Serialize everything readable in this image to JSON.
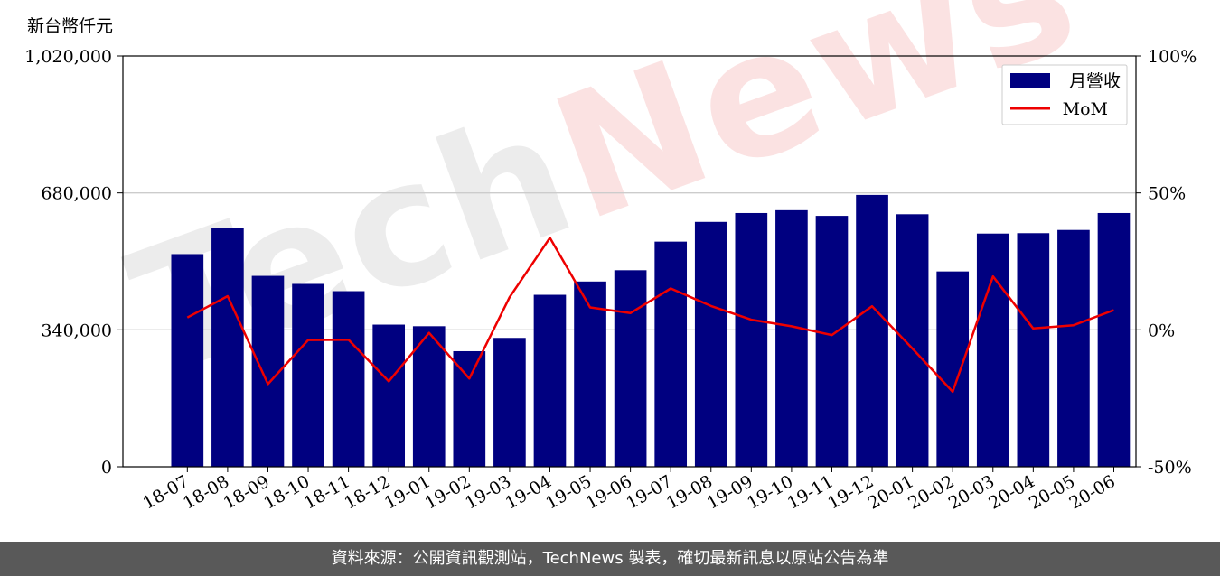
{
  "unit_label": "新台幣仟元",
  "footer_text": "資料來源：公開資訊觀測站，TechNews 製表，確切最新訊息以原站公告為準",
  "watermark": {
    "part1": "Tech",
    "part2": "News"
  },
  "colors": {
    "bar": "#000080",
    "line": "#ee0000",
    "grid": "#cccccc",
    "footer_bg": "#595959"
  },
  "chart_data": {
    "type": "bar",
    "categories": [
      "18-07",
      "18-08",
      "18-09",
      "18-10",
      "18-11",
      "18-12",
      "19-01",
      "19-02",
      "19-03",
      "19-04",
      "19-05",
      "19-06",
      "19-07",
      "19-08",
      "19-09",
      "19-10",
      "19-11",
      "19-12",
      "20-01",
      "20-02",
      "20-03",
      "20-04",
      "20-05",
      "20-06"
    ],
    "series": [
      {
        "name": "月營收",
        "type": "bar",
        "axis": "left",
        "values": [
          528000,
          593000,
          474000,
          454000,
          436000,
          353000,
          349000,
          287000,
          320000,
          427000,
          460000,
          488000,
          559000,
          608000,
          630000,
          637000,
          623000,
          675000,
          627000,
          485000,
          579000,
          580000,
          588000,
          630000
        ]
      },
      {
        "name": "MoM",
        "type": "line",
        "axis": "right",
        "values": [
          4.5,
          12.3,
          -19.8,
          -3.7,
          -3.6,
          -18.8,
          -1.1,
          -17.8,
          11.9,
          33.6,
          8.2,
          6.1,
          15.1,
          8.7,
          3.7,
          1.3,
          -1.9,
          8.6,
          -6.8,
          -22.6,
          19.5,
          0.5,
          1.7,
          7.2
        ]
      }
    ],
    "yaxis_left": {
      "ticks": [
        0,
        340000,
        680000,
        1020000
      ],
      "tick_labels": [
        "0",
        "340,000",
        "680,000",
        "1,020,000"
      ],
      "range": [
        0,
        1020000
      ]
    },
    "yaxis_right": {
      "ticks": [
        -50,
        0,
        50,
        100
      ],
      "tick_labels": [
        "-50%",
        "0%",
        "50%",
        "100%"
      ],
      "range": [
        -50,
        100
      ]
    },
    "grid": "horizontal",
    "legend_position": "top-right"
  }
}
